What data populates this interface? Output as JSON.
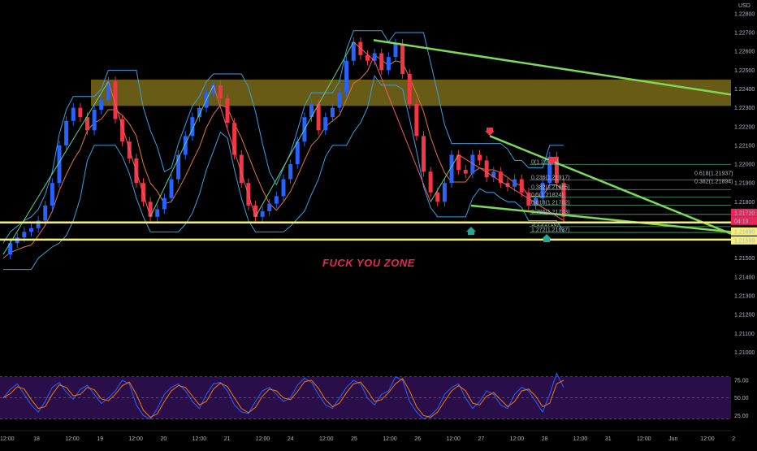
{
  "currency": "USD",
  "annotation": "FUCK YOU ZONE",
  "colors": {
    "background": "#000000",
    "resistance_zone": "#8a7a1e",
    "support_line": "#f5f07a",
    "trend_line": "#7ed957",
    "pattern_up": "#5fd28f",
    "pattern_down": "#f25c6c",
    "candle_up": "#2962ff",
    "candle_down": "#f23645",
    "band": "#3aa0e0",
    "midline": "#e0773a",
    "rsi_bg": "#2a0e4a",
    "price_tag": "#e8265e",
    "fib_tag": "#ffff66"
  },
  "price_labels": {
    "current": "1.21720",
    "countdown": "04:19",
    "support_upper": "1.21690",
    "support_lower": "1.21599"
  },
  "fib_labels": [
    {
      "text": "0(1.21999)",
      "price": 1.21999
    },
    {
      "text": "0.236(1.21917)",
      "price": 1.21917
    },
    {
      "text": "0.382(1.21865)",
      "price": 1.21865
    },
    {
      "text": "0.5(1.21824)",
      "price": 1.21824
    },
    {
      "text": "0.618(1.21782)",
      "price": 1.21782
    },
    {
      "text": "0.786(1.21733)",
      "price": 1.21733
    },
    {
      "text": "1(1.21716)",
      "price": 1.21668
    },
    {
      "text": "1.272(1.21637)",
      "price": 1.21637
    }
  ],
  "fib_right": [
    {
      "text": "0.618(1.21937)",
      "price": 1.21937
    },
    {
      "text": "0.382(1.21894)",
      "price": 1.21894
    }
  ],
  "chart_data": {
    "type": "line",
    "title": "",
    "y_ticks": [
      "1.22800",
      "1.22700",
      "1.22600",
      "1.22500",
      "1.22400",
      "1.22300",
      "1.22200",
      "1.22100",
      "1.22000",
      "1.21900",
      "1.21800",
      "1.21600",
      "1.21500",
      "1.21400",
      "1.21300",
      "1.21200",
      "1.21100",
      "1.21000"
    ],
    "ylim": [
      1.2095,
      1.2283
    ],
    "x_ticks": [
      "12:00",
      "18",
      "12:00",
      "19",
      "12:00",
      "20",
      "12:00",
      "21",
      "12:00",
      "24",
      "12:00",
      "25",
      "12:00",
      "26",
      "12:00",
      "27",
      "12:00",
      "28",
      "12:00",
      "31",
      "12:00",
      "Jun",
      "12:00",
      "2"
    ],
    "series": [
      {
        "x": [
          0,
          1,
          2,
          3,
          4,
          5,
          6,
          7,
          8,
          9,
          10,
          11,
          12,
          13,
          14,
          15,
          16,
          17,
          18,
          19,
          20,
          21,
          22,
          23,
          24,
          25,
          26,
          27,
          28,
          29,
          30,
          31,
          32,
          33,
          34,
          35,
          36,
          37,
          38,
          39,
          40,
          41,
          42,
          43,
          44,
          45,
          46,
          47,
          48,
          49,
          50,
          51,
          52,
          53,
          54,
          55,
          56,
          57,
          58,
          59,
          60,
          61,
          62,
          63,
          64,
          65,
          66,
          67,
          68,
          69,
          70,
          71,
          72,
          73,
          74,
          75,
          76,
          77,
          78,
          79,
          80
        ],
        "values": [
          1.2152,
          1.2158,
          1.2161,
          1.2164,
          1.2166,
          1.217,
          1.2178,
          1.219,
          1.221,
          1.2223,
          1.223,
          1.2225,
          1.2218,
          1.2229,
          1.2234,
          1.2244,
          1.2224,
          1.2212,
          1.2203,
          1.219,
          1.218,
          1.2172,
          1.2176,
          1.2182,
          1.2192,
          1.2205,
          1.2215,
          1.2225,
          1.223,
          1.2238,
          1.2242,
          1.2235,
          1.2222,
          1.2205,
          1.219,
          1.2178,
          1.2172,
          1.2175,
          1.2179,
          1.2183,
          1.2192,
          1.22,
          1.2212,
          1.2225,
          1.2232,
          1.2218,
          1.2225,
          1.223,
          1.2238,
          1.2255,
          1.2265,
          1.2258,
          1.2255,
          1.2259,
          1.225,
          1.2257,
          1.2264,
          1.2248,
          1.2232,
          1.2215,
          1.2196,
          1.2185,
          1.218,
          1.219,
          1.2205,
          1.2197,
          1.2195,
          1.2205,
          1.2202,
          1.2193,
          1.2196,
          1.219,
          1.2188,
          1.2192,
          1.2185,
          1.2178,
          1.2182,
          1.219,
          1.2204,
          1.219,
          1.2172
        ]
      }
    ],
    "rsi": {
      "ticks": [
        "75.00",
        "50.00",
        "25.00"
      ],
      "ylim": [
        15,
        90
      ],
      "values": [
        50,
        62,
        70,
        55,
        40,
        30,
        45,
        65,
        72,
        58,
        48,
        62,
        68,
        55,
        42,
        50,
        60,
        75,
        70,
        40,
        25,
        20,
        35,
        55,
        65,
        70,
        60,
        45,
        35,
        55,
        70,
        72,
        60,
        40,
        30,
        28,
        45,
        60,
        65,
        55,
        45,
        50,
        68,
        78,
        72,
        55,
        40,
        35,
        50,
        65,
        75,
        70,
        50,
        40,
        55,
        60,
        80,
        75,
        45,
        30,
        20,
        25,
        35,
        55,
        65,
        70,
        50,
        35,
        45,
        60,
        55,
        40,
        35,
        55,
        65,
        60,
        45,
        30,
        55,
        85,
        65
      ]
    }
  }
}
